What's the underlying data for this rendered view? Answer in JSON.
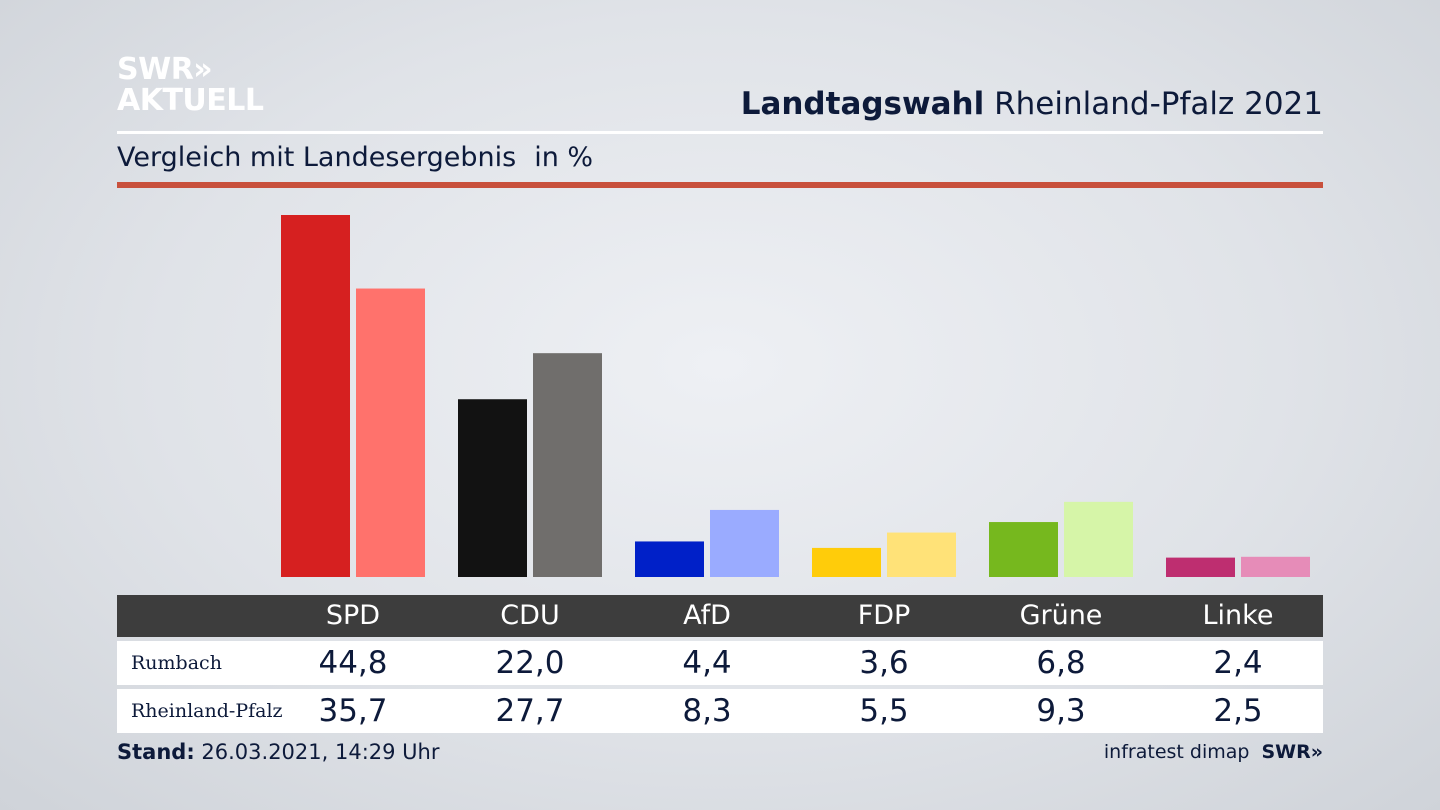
{
  "logo": {
    "line1": "SWR»",
    "line2": "AKTUELL"
  },
  "header": {
    "title_bold": "Landtagswahl",
    "title_rest": " Rheinland-Pfalz 2021"
  },
  "subheader": {
    "text": "Vergleich mit Landesergebnis",
    "unit": "in %"
  },
  "chart_data": {
    "type": "bar",
    "title": "Landtagswahl Rheinland-Pfalz 2021",
    "subtitle": "Vergleich mit Landesergebnis in %",
    "categories": [
      "SPD",
      "CDU",
      "AfD",
      "FDP",
      "Grüne",
      "Linke"
    ],
    "series": [
      {
        "name": "Rumbach",
        "values": [
          44.8,
          22.0,
          4.4,
          3.6,
          6.8,
          2.4
        ],
        "labels": [
          "44,8",
          "22,0",
          "4,4",
          "3,6",
          "6,8",
          "2,4"
        ],
        "colors": [
          "#d62020",
          "#121212",
          "#0020c8",
          "#ffcc0a",
          "#76b81e",
          "#be2e70"
        ]
      },
      {
        "name": "Rheinland-Pfalz",
        "values": [
          35.7,
          27.7,
          8.3,
          5.5,
          9.3,
          2.5
        ],
        "labels": [
          "35,7",
          "27,7",
          "8,3",
          "5,5",
          "9,3",
          "2,5"
        ],
        "colors": [
          "#ff726c",
          "#706e6c",
          "#9aabff",
          "#ffe278",
          "#d6f5a8",
          "#e68cb8"
        ]
      }
    ],
    "ylim": [
      0,
      44.8
    ],
    "grid": false,
    "legend": "table-below"
  },
  "footer": {
    "stand_label": "Stand:",
    "stand_value": " 26.03.2021, 14:29 Uhr",
    "source": "infratest dimap",
    "brand": "SWR»"
  }
}
